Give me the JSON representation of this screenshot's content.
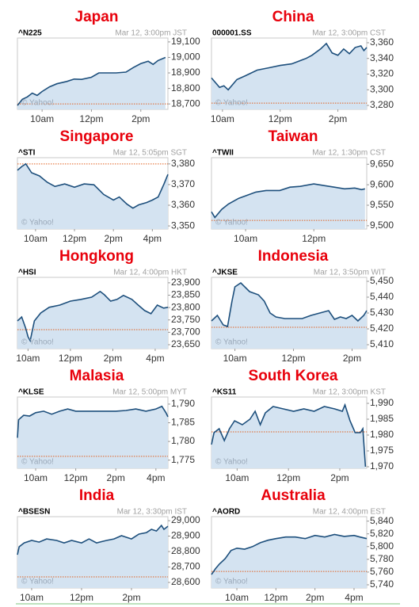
{
  "chart_data": [
    {
      "type": "line",
      "title": "Japan",
      "subtitle": "^N225",
      "timestamp": "Mar 12, 3:00pm JST",
      "credit": "© Yahoo!",
      "color": "#1d4f7c",
      "fill_color": "#d4e3f1",
      "prev_close": 18700,
      "prev_close_color": "#e06020",
      "x": [
        9,
        9.2,
        9.4,
        9.6,
        9.8,
        10,
        10.3,
        10.6,
        11,
        11.3,
        11.6,
        12,
        12.3,
        12.6,
        13,
        13.4,
        13.7,
        14,
        14.3,
        14.5,
        14.7,
        15
      ],
      "values": [
        18690,
        18730,
        18745,
        18770,
        18755,
        18780,
        18810,
        18830,
        18845,
        18860,
        18858,
        18872,
        18900,
        18900,
        18900,
        18905,
        18935,
        18960,
        18975,
        18955,
        18980,
        19000
      ],
      "xlim": [
        9,
        15.1
      ],
      "xticks": [
        {
          "value": 10,
          "label": "10am"
        },
        {
          "value": 12,
          "label": "12pm"
        },
        {
          "value": 14,
          "label": "2pm"
        }
      ],
      "ylim": [
        18665,
        19125
      ],
      "yticks": [
        {
          "value": 19100,
          "label": "19,100"
        },
        {
          "value": 19000,
          "label": "19,000"
        },
        {
          "value": 18900,
          "label": "18,900"
        },
        {
          "value": 18800,
          "label": "18,800"
        },
        {
          "value": 18700,
          "label": "18,700"
        }
      ]
    },
    {
      "type": "line",
      "title": "China",
      "subtitle": "000001.SS",
      "timestamp": "Mar 12, 3:00pm CST",
      "credit": "© Yahoo!",
      "color": "#1d4f7c",
      "fill_color": "#d4e3f1",
      "prev_close": 3283,
      "prev_close_color": "#e06020",
      "x": [
        9.62,
        9.9,
        10.05,
        10.2,
        10.5,
        10.8,
        11.2,
        11.6,
        12,
        12.4,
        12.9,
        13.1,
        13.4,
        13.6,
        13.8,
        14,
        14.2,
        14.4,
        14.6,
        14.8,
        14.9,
        15
      ],
      "values": [
        3315,
        3303,
        3305,
        3300,
        3313,
        3318,
        3325,
        3328,
        3331,
        3333,
        3340,
        3344,
        3352,
        3359,
        3347,
        3344,
        3352,
        3346,
        3354,
        3356,
        3350,
        3354
      ],
      "xlim": [
        9.62,
        15
      ],
      "xticks": [
        {
          "value": 10,
          "label": "10am"
        },
        {
          "value": 12,
          "label": "12pm"
        },
        {
          "value": 14,
          "label": "2pm"
        }
      ],
      "ylim": [
        3275,
        3366
      ],
      "yticks": [
        {
          "value": 3360,
          "label": "3,360"
        },
        {
          "value": 3340,
          "label": "3,340"
        },
        {
          "value": 3320,
          "label": "3,320"
        },
        {
          "value": 3300,
          "label": "3,300"
        },
        {
          "value": 3280,
          "label": "3,280"
        }
      ]
    },
    {
      "type": "line",
      "title": "Singapore",
      "subtitle": "^STI",
      "timestamp": "Mar 12, 5:05pm SGT",
      "credit": "© Yahoo!",
      "color": "#1d4f7c",
      "fill_color": "#d4e3f1",
      "prev_close": 3380,
      "prev_close_color": "#e06020",
      "x": [
        9.07,
        9.3,
        9.5,
        9.8,
        10.2,
        10.6,
        11,
        11.5,
        12,
        12.5,
        13,
        13.5,
        14,
        14.3,
        14.7,
        15,
        15.3,
        15.7,
        16,
        16.3,
        16.6,
        16.8
      ],
      "values": [
        3376.9,
        3378.8,
        3380,
        3375.7,
        3374.2,
        3371.1,
        3369.1,
        3370.3,
        3368.7,
        3370.3,
        3369.9,
        3365.2,
        3362.5,
        3364,
        3360.5,
        3358.6,
        3360.2,
        3361.3,
        3362.5,
        3364,
        3370.3,
        3374.9
      ],
      "xlim": [
        9.07,
        16.8
      ],
      "xticks": [
        {
          "value": 10,
          "label": "10am"
        },
        {
          "value": 12,
          "label": "12pm"
        },
        {
          "value": 14,
          "label": "2pm"
        },
        {
          "value": 16,
          "label": "4pm"
        }
      ],
      "ylim": [
        3348.5,
        3383
      ],
      "yticks": [
        {
          "value": 3380,
          "label": "3,380"
        },
        {
          "value": 3370,
          "label": "3,370"
        },
        {
          "value": 3360,
          "label": "3,360"
        },
        {
          "value": 3350,
          "label": "3,350"
        }
      ]
    },
    {
      "type": "line",
      "title": "Taiwan",
      "subtitle": "^TWII",
      "timestamp": "Mar 12, 1:30pm CST",
      "credit": "© Yahoo!",
      "color": "#1d4f7c",
      "fill_color": "#d4e3f1",
      "prev_close": 9513,
      "prev_close_color": "#e06020",
      "x": [
        9,
        9.1,
        9.3,
        9.5,
        9.8,
        10,
        10.3,
        10.6,
        11,
        11.3,
        11.6,
        12,
        12.3,
        12.6,
        12.9,
        13.2,
        13.4,
        13.5
      ],
      "values": [
        9534,
        9520,
        9540,
        9553,
        9567,
        9573,
        9582,
        9586,
        9586,
        9594,
        9596,
        9602,
        9598,
        9594,
        9590,
        9592,
        9588,
        9590
      ],
      "xlim": [
        9,
        13.55
      ],
      "xticks": [
        {
          "value": 10,
          "label": "10am"
        },
        {
          "value": 12,
          "label": "12pm"
        }
      ],
      "ylim": [
        9492,
        9666
      ],
      "yticks": [
        {
          "value": 9650,
          "label": "9,650"
        },
        {
          "value": 9600,
          "label": "9,600"
        },
        {
          "value": 9550,
          "label": "9,550"
        },
        {
          "value": 9500,
          "label": "9,500"
        }
      ]
    },
    {
      "type": "line",
      "title": "Hongkong",
      "subtitle": "^HSI",
      "timestamp": "Mar 12, 4:00pm HKT",
      "credit": "© Yahoo!",
      "color": "#1d4f7c",
      "fill_color": "#d4e3f1",
      "prev_close": 23711,
      "prev_close_color": "#e06020",
      "x": [
        9.5,
        9.7,
        9.9,
        10,
        10.1,
        10.3,
        10.6,
        11,
        11.5,
        12,
        12.5,
        13,
        13.4,
        13.6,
        13.9,
        14.2,
        14.5,
        14.9,
        15.2,
        15.5,
        15.8,
        16.1,
        16.4,
        16.6
      ],
      "values": [
        23746,
        23762,
        23714,
        23682,
        23666,
        23746,
        23778,
        23801,
        23810,
        23826,
        23833,
        23842,
        23865,
        23852,
        23826,
        23833,
        23849,
        23833,
        23810,
        23788,
        23775,
        23810,
        23798,
        23801
      ],
      "xlim": [
        9.5,
        16.6
      ],
      "xticks": [
        {
          "value": 10,
          "label": "10am"
        },
        {
          "value": 12,
          "label": "12pm"
        },
        {
          "value": 14,
          "label": "2pm"
        },
        {
          "value": 16,
          "label": "4pm"
        }
      ],
      "ylim": [
        23634,
        23922
      ],
      "yticks": [
        {
          "value": 23900,
          "label": "23,900"
        },
        {
          "value": 23850,
          "label": "23,850"
        },
        {
          "value": 23800,
          "label": "23,800"
        },
        {
          "value": 23750,
          "label": "23,750"
        },
        {
          "value": 23700,
          "label": "23,700"
        },
        {
          "value": 23650,
          "label": "23,650"
        }
      ]
    },
    {
      "type": "line",
      "title": "Indonesia",
      "subtitle": "^JKSE",
      "timestamp": "Mar 12, 3:50pm WIT",
      "credit": "© Yahoo!",
      "color": "#1d4f7c",
      "fill_color": "#d4e3f1",
      "prev_close": 5421,
      "prev_close_color": "#e06020",
      "x": [
        9.2,
        9.4,
        9.6,
        9.75,
        9.9,
        10,
        10.2,
        10.5,
        10.8,
        11,
        11.2,
        11.4,
        11.7,
        12,
        12.3,
        12.6,
        12.9,
        13.2,
        13.4,
        13.6,
        13.8,
        14,
        14.2,
        14.4,
        14.5
      ],
      "values": [
        5425,
        5428.5,
        5422.5,
        5421.5,
        5437.5,
        5446.5,
        5449,
        5443.5,
        5441.5,
        5437.5,
        5430,
        5427.5,
        5426.5,
        5426.5,
        5426.5,
        5428.5,
        5430,
        5431.5,
        5426,
        5427.5,
        5426.5,
        5428.5,
        5425,
        5428.5,
        5431.5
      ],
      "xlim": [
        9.2,
        14.5
      ],
      "xticks": [
        {
          "value": 10,
          "label": "10am"
        },
        {
          "value": 12,
          "label": "12pm"
        },
        {
          "value": 14,
          "label": "2pm"
        }
      ],
      "ylim": [
        5407.5,
        5452.5
      ],
      "yticks": [
        {
          "value": 5450,
          "label": "5,450"
        },
        {
          "value": 5440,
          "label": "5,440"
        },
        {
          "value": 5430,
          "label": "5,430"
        },
        {
          "value": 5420,
          "label": "5,420"
        },
        {
          "value": 5410,
          "label": "5,410"
        }
      ]
    },
    {
      "type": "line",
      "title": "Malasia",
      "subtitle": "^KLSE",
      "timestamp": "Mar 12, 5:00pm MYT",
      "credit": "© Yahoo!",
      "color": "#1d4f7c",
      "fill_color": "#d4e3f1",
      "prev_close": 1776,
      "prev_close_color": "#e06020",
      "x": [
        9.09,
        9.15,
        9.4,
        9.7,
        10,
        10.4,
        10.8,
        11.2,
        11.6,
        12,
        12.5,
        13,
        13.5,
        14,
        14.5,
        15,
        15.5,
        16,
        16.3,
        16.5,
        16.6
      ],
      "values": [
        1781,
        1785.8,
        1787,
        1786.8,
        1787.7,
        1788.1,
        1787.3,
        1788.1,
        1788.7,
        1788.1,
        1788.1,
        1788.1,
        1788.1,
        1788.1,
        1788.3,
        1788.7,
        1788.1,
        1788.7,
        1789.4,
        1787.7,
        1786.6
      ],
      "xlim": [
        9.09,
        16.6
      ],
      "xticks": [
        {
          "value": 10,
          "label": "10am"
        },
        {
          "value": 12,
          "label": "12pm"
        },
        {
          "value": 14,
          "label": "2pm"
        },
        {
          "value": 16,
          "label": "4pm"
        }
      ],
      "ylim": [
        1772.8,
        1791.9
      ],
      "yticks": [
        {
          "value": 1790,
          "label": "1,790"
        },
        {
          "value": 1785,
          "label": "1,785"
        },
        {
          "value": 1780,
          "label": "1,780"
        },
        {
          "value": 1775,
          "label": "1,775"
        }
      ]
    },
    {
      "type": "line",
      "title": "South Korea",
      "subtitle": "^KS11",
      "timestamp": "Mar 12, 3:00pm KST",
      "credit": "© Yahoo!",
      "color": "#1d4f7c",
      "fill_color": "#d4e3f1",
      "prev_close": 1981,
      "prev_close_color": "#e06020",
      "x": [
        9,
        9.1,
        9.3,
        9.5,
        9.7,
        9.9,
        10.2,
        10.5,
        10.7,
        10.9,
        11.1,
        11.4,
        11.8,
        12.2,
        12.6,
        13,
        13.4,
        13.8,
        14.1,
        14.2,
        14.4,
        14.6,
        14.8,
        14.9,
        15
      ],
      "values": [
        1977,
        1980.75,
        1982,
        1978.25,
        1982,
        1984.5,
        1983.25,
        1985,
        1987.5,
        1983.25,
        1987,
        1989,
        1988.25,
        1987.5,
        1988.25,
        1987.5,
        1989,
        1988.25,
        1987.5,
        1989.5,
        1984.5,
        1980.75,
        1980.75,
        1982,
        1970
      ],
      "xlim": [
        9,
        15.05
      ],
      "xticks": [
        {
          "value": 10,
          "label": "10am"
        },
        {
          "value": 12,
          "label": "12pm"
        },
        {
          "value": 14,
          "label": "2pm"
        }
      ],
      "ylim": [
        1969.5,
        1992
      ],
      "yticks": [
        {
          "value": 1990,
          "label": "1,990"
        },
        {
          "value": 1985,
          "label": "1,985"
        },
        {
          "value": 1980,
          "label": "1,980"
        },
        {
          "value": 1975,
          "label": "1,975"
        },
        {
          "value": 1970,
          "label": "1,970"
        }
      ]
    },
    {
      "type": "line",
      "title": "India",
      "subtitle": "^BSESN",
      "timestamp": "Mar 12, 3:30pm IST",
      "credit": "© Yahoo!",
      "color": "#1d4f7c",
      "fill_color": "#d4e3f1",
      "prev_close": 28636,
      "prev_close_color": "#e06020",
      "x": [
        9.43,
        9.5,
        9.7,
        10,
        10.3,
        10.6,
        11,
        11.3,
        11.6,
        12,
        12.3,
        12.6,
        13,
        13.3,
        13.6,
        14,
        14.3,
        14.6,
        14.8,
        15,
        15.2,
        15.3,
        15.46
      ],
      "values": [
        28779,
        28831,
        28856,
        28872,
        28861,
        28882,
        28872,
        28856,
        28872,
        28856,
        28882,
        28856,
        28872,
        28882,
        28903,
        28882,
        28913,
        28923,
        28944,
        28933,
        28969,
        28944,
        28964
      ],
      "xlim": [
        9.43,
        15.46
      ],
      "xticks": [
        {
          "value": 10,
          "label": "10am"
        },
        {
          "value": 12,
          "label": "12pm"
        },
        {
          "value": 14,
          "label": "2pm"
        }
      ],
      "ylim": [
        28564,
        29026
      ],
      "yticks": [
        {
          "value": 29000,
          "label": "29,000"
        },
        {
          "value": 28900,
          "label": "28,900"
        },
        {
          "value": 28800,
          "label": "28,800"
        },
        {
          "value": 28700,
          "label": "28,700"
        },
        {
          "value": 28600,
          "label": "28,600"
        }
      ]
    },
    {
      "type": "line",
      "title": "Australia",
      "subtitle": "^AORD",
      "timestamp": "Mar 12, 4:00pm EST",
      "credit": "© Yahoo!",
      "color": "#1d4f7c",
      "fill_color": "#d4e3f1",
      "prev_close": 5761,
      "prev_close_color": "#e06020",
      "x": [
        8.7,
        8.9,
        9.1,
        9.4,
        9.7,
        10,
        10.4,
        10.8,
        11.2,
        11.6,
        12,
        12.5,
        13,
        13.5,
        14,
        14.5,
        15,
        15.5,
        16,
        16.3,
        16.65
      ],
      "values": [
        5756,
        5765,
        5772.5,
        5781,
        5794,
        5797.5,
        5796,
        5800,
        5806,
        5810,
        5812.5,
        5815,
        5815,
        5812.5,
        5817.5,
        5815,
        5819,
        5816,
        5817.5,
        5815,
        5812.5
      ],
      "xlim": [
        8.7,
        16.65
      ],
      "xticks": [
        {
          "value": 10,
          "label": "10am"
        },
        {
          "value": 12,
          "label": "12pm"
        },
        {
          "value": 14,
          "label": "2pm"
        },
        {
          "value": 16,
          "label": "4pm"
        }
      ],
      "ylim": [
        5735,
        5847
      ],
      "yticks": [
        {
          "value": 5840,
          "label": "5,840"
        },
        {
          "value": 5820,
          "label": "5,820"
        },
        {
          "value": 5800,
          "label": "5,800"
        },
        {
          "value": 5780,
          "label": "5,780"
        },
        {
          "value": 5760,
          "label": "5,760"
        },
        {
          "value": 5740,
          "label": "5,740"
        }
      ]
    }
  ]
}
